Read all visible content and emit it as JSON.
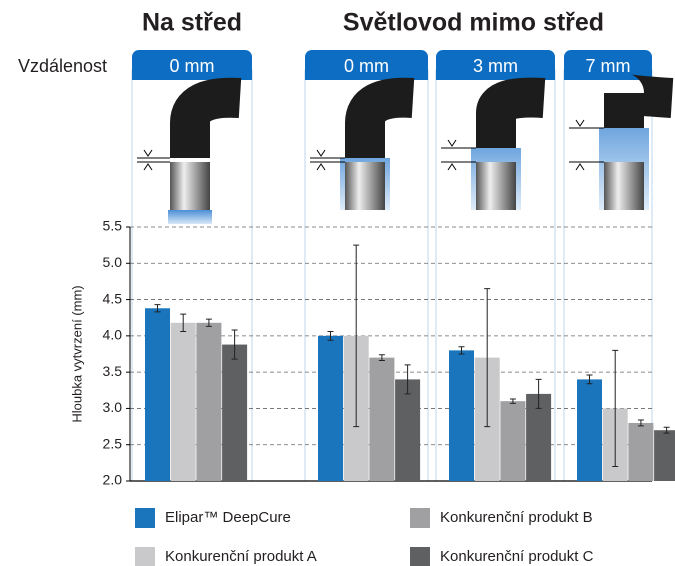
{
  "chart_data": {
    "type": "bar",
    "groups": [
      "Na střed",
      "Světlovod mimo střed"
    ],
    "distance_label": "Vzdálenost",
    "categories": [
      "0 mm",
      "0 mm",
      "3 mm",
      "7 mm"
    ],
    "y_label": "Hloubka vytvrzení (mm)",
    "ylim": [
      2,
      5.5
    ],
    "yticks": [
      {
        "value": 2,
        "label": "2.0"
      },
      2.5,
      {
        "value": 3,
        "label": "3.0"
      },
      3.5,
      {
        "value": 4,
        "label": "4.0"
      },
      4.5,
      {
        "value": 5,
        "label": "5.0"
      },
      5.5
    ],
    "grid": true,
    "series": [
      {
        "name": "Elipar™ DeepCure",
        "color": "#1a75bc",
        "values": [
          4.38,
          4.0,
          3.8,
          3.4
        ],
        "errors": [
          0.05,
          0.06,
          0.05,
          0.06
        ]
      },
      {
        "name": "Konkurenční produkt A",
        "color": "#c9c9cb",
        "values": [
          4.18,
          4.0,
          3.7,
          3.0
        ],
        "errors": [
          0.12,
          1.25,
          0.95,
          0.8
        ]
      },
      {
        "name": "Konkurenční produkt B",
        "color": "#a0a0a2",
        "values": [
          4.18,
          3.7,
          3.1,
          2.8
        ],
        "errors": [
          0.05,
          0.04,
          0.03,
          0.04
        ]
      },
      {
        "name": "Konkurenční produkt C",
        "color": "#5f6062",
        "values": [
          3.88,
          3.4,
          3.2,
          2.7
        ],
        "errors": [
          0.2,
          0.2,
          0.2,
          0.04
        ]
      }
    ]
  }
}
